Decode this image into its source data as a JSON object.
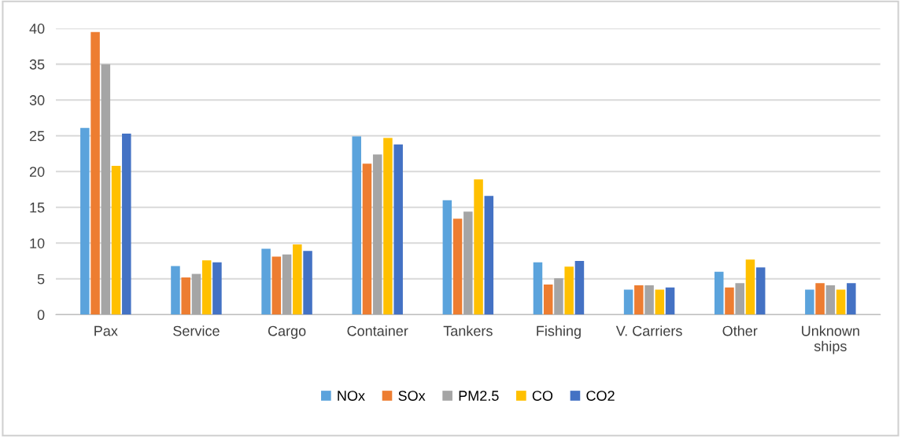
{
  "chart_data": {
    "type": "bar",
    "categories": [
      "Pax",
      "Service",
      "Cargo",
      "Container",
      "Tankers",
      "Fishing",
      "V. Carriers",
      "Other",
      "Unknown\nships"
    ],
    "series": [
      {
        "name": "NOx",
        "color": "#5ba3dc",
        "values": [
          26.1,
          6.8,
          9.2,
          24.9,
          16.0,
          7.3,
          3.5,
          6.0,
          3.5
        ]
      },
      {
        "name": "SOx",
        "color": "#ed7d31",
        "values": [
          39.5,
          5.2,
          8.1,
          21.1,
          13.4,
          4.2,
          4.1,
          3.8,
          4.4
        ]
      },
      {
        "name": "PM2.5",
        "color": "#a5a5a5",
        "values": [
          35.0,
          5.7,
          8.4,
          22.4,
          14.4,
          5.1,
          4.1,
          4.4,
          4.1
        ]
      },
      {
        "name": "CO",
        "color": "#ffc000",
        "values": [
          20.8,
          7.6,
          9.8,
          24.7,
          18.9,
          6.7,
          3.5,
          7.7,
          3.5
        ]
      },
      {
        "name": "CO2",
        "color": "#4472c4",
        "values": [
          25.3,
          7.3,
          8.9,
          23.8,
          16.6,
          7.5,
          3.8,
          6.6,
          4.4
        ]
      }
    ],
    "ylim": [
      0,
      40
    ],
    "yticks": [
      0,
      5,
      10,
      15,
      20,
      25,
      30,
      35,
      40
    ],
    "grid": "y",
    "legend": "bottom"
  }
}
